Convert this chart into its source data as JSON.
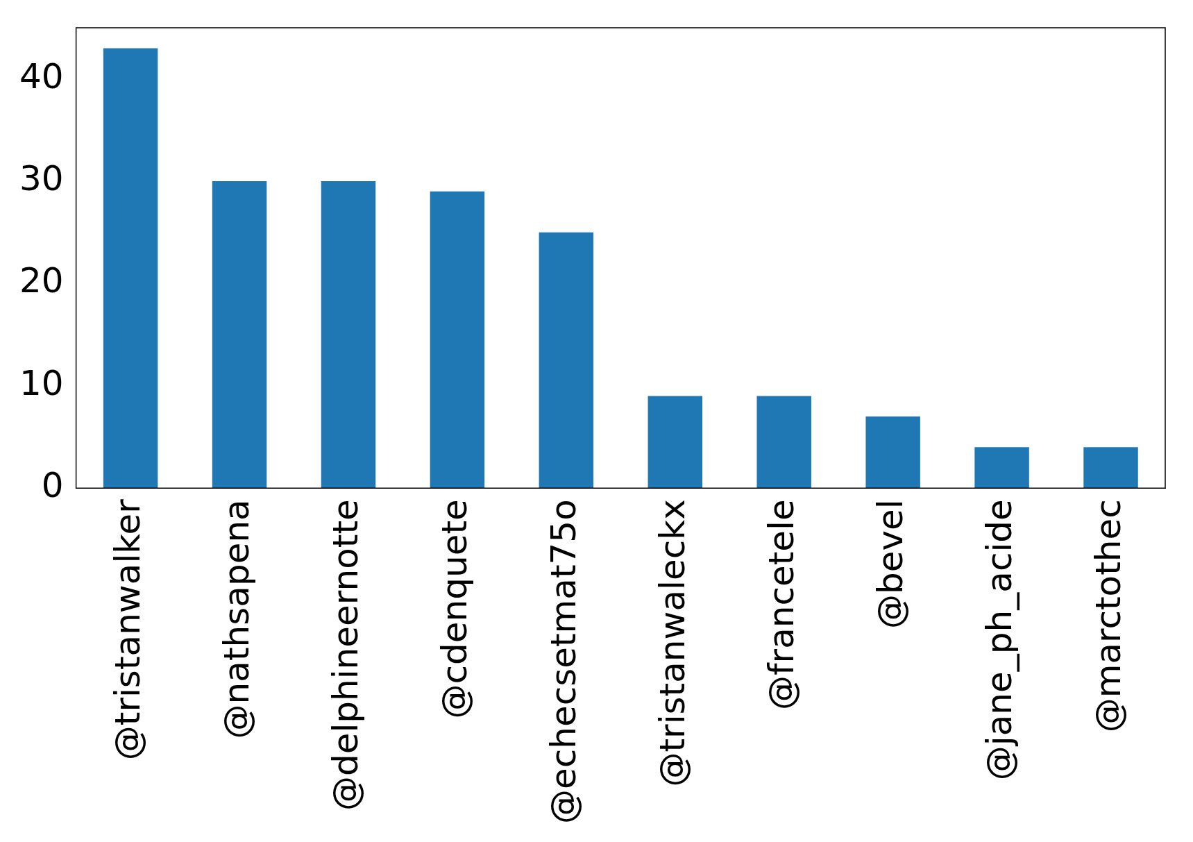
{
  "chart_data": {
    "type": "bar",
    "categories": [
      "@tristanwalker",
      "@nathsapena",
      "@delphineernotte",
      "@cdenquete",
      "@echecsetmat75o",
      "@tristanwaleckx",
      "@francetele",
      "@bevel",
      "@jane_ph_acide",
      "@marctothec"
    ],
    "values": [
      43,
      30,
      30,
      29,
      25,
      9,
      9,
      7,
      4,
      4
    ],
    "color": "#1f77b4",
    "ylim": [
      0,
      45
    ],
    "yticks": [
      0,
      10,
      20,
      30,
      40
    ],
    "grid": false,
    "legend": false
  }
}
